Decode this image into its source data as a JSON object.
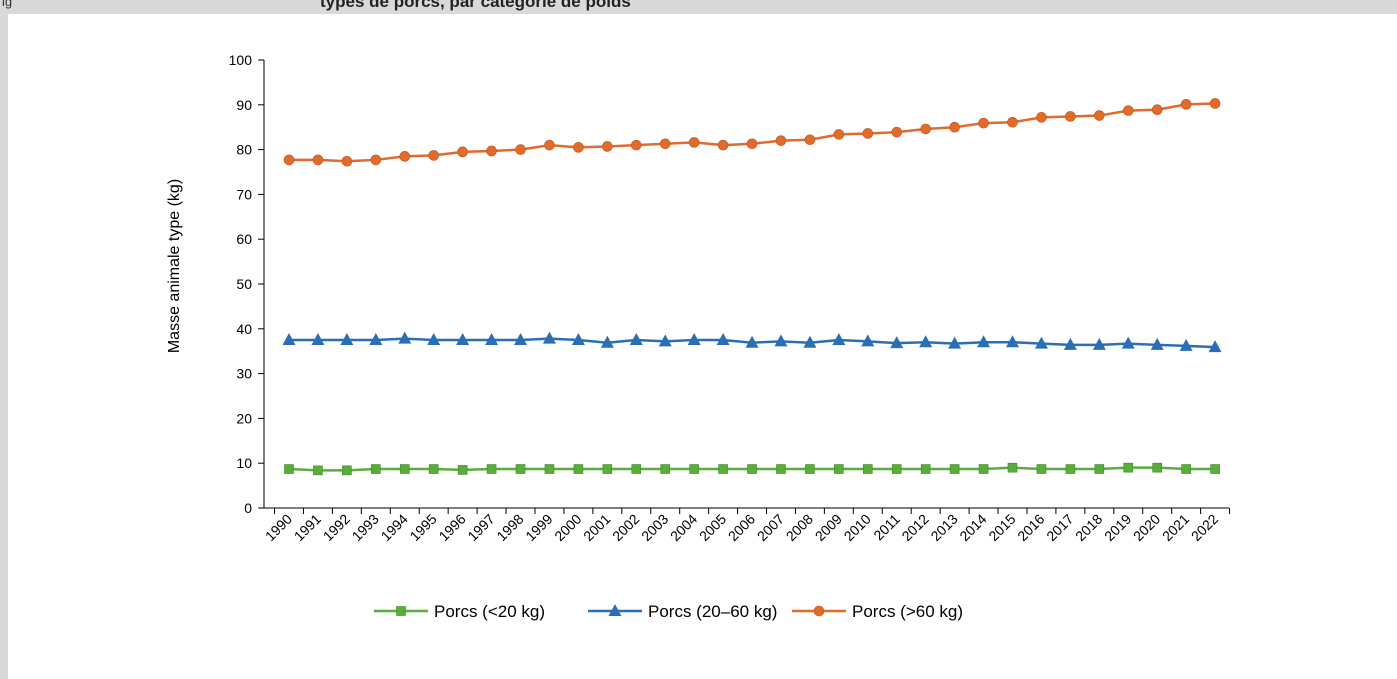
{
  "header": {
    "prefix": "ig",
    "title": "types de porcs, par catégorie de poids"
  },
  "colors": {
    "series1": "#5aad3b",
    "series2": "#2a6fb5",
    "series3": "#e06b2b",
    "axis": "#000000",
    "background": "#d9d9d9"
  },
  "chart_data": {
    "type": "line",
    "ylabel": "Masse animale type (kg)",
    "xlabel": "",
    "ylim": [
      0,
      100
    ],
    "yticks": [
      0,
      10,
      20,
      30,
      40,
      50,
      60,
      70,
      80,
      90,
      100
    ],
    "grid": false,
    "legend_position": "bottom",
    "x": [
      "1990",
      "1991",
      "1992",
      "1993",
      "1994",
      "1995",
      "1996",
      "1997",
      "1998",
      "1999",
      "2000",
      "2001",
      "2002",
      "2003",
      "2004",
      "2005",
      "2006",
      "2007",
      "2008",
      "2009",
      "2010",
      "2011",
      "2012",
      "2013",
      "2014",
      "2015",
      "2016",
      "2017",
      "2018",
      "2019",
      "2020",
      "2021",
      "2022"
    ],
    "series": [
      {
        "name": "Porcs (<20 kg)",
        "marker": "square",
        "values": [
          8.7,
          8.4,
          8.4,
          8.7,
          8.7,
          8.7,
          8.5,
          8.7,
          8.7,
          8.7,
          8.7,
          8.7,
          8.7,
          8.7,
          8.7,
          8.7,
          8.7,
          8.7,
          8.7,
          8.7,
          8.7,
          8.7,
          8.7,
          8.7,
          8.7,
          9.0,
          8.7,
          8.7,
          8.7,
          9.0,
          9.0,
          8.7,
          8.7
        ]
      },
      {
        "name": "Porcs (20–60 kg)",
        "marker": "triangle",
        "values": [
          37.5,
          37.5,
          37.5,
          37.5,
          37.8,
          37.5,
          37.5,
          37.5,
          37.5,
          37.8,
          37.5,
          36.9,
          37.5,
          37.2,
          37.5,
          37.5,
          36.9,
          37.2,
          36.9,
          37.5,
          37.2,
          36.8,
          37.0,
          36.7,
          37.0,
          37.0,
          36.7,
          36.4,
          36.4,
          36.7,
          36.4,
          36.2,
          35.9
        ]
      },
      {
        "name": "Porcs (>60 kg)",
        "marker": "circle",
        "values": [
          77.7,
          77.7,
          77.4,
          77.7,
          78.5,
          78.7,
          79.5,
          79.7,
          80.0,
          81.0,
          80.5,
          80.7,
          81.0,
          81.3,
          81.6,
          81.0,
          81.3,
          82.0,
          82.2,
          83.4,
          83.6,
          83.9,
          84.6,
          85.0,
          85.9,
          86.1,
          87.2,
          87.4,
          87.6,
          88.7,
          88.9,
          90.1,
          90.3
        ]
      }
    ]
  }
}
